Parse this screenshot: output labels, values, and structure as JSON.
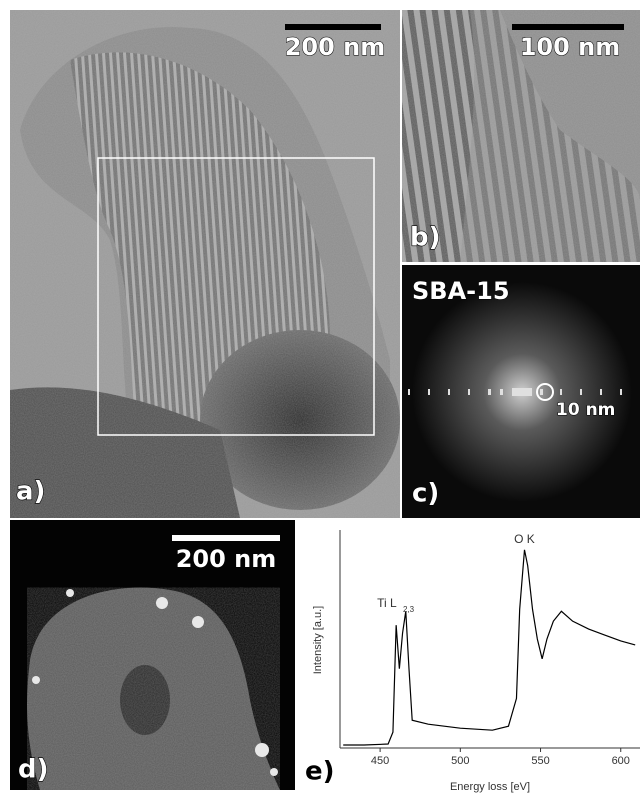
{
  "panels": {
    "a": {
      "label": "a)",
      "scale_bar": "200 nm"
    },
    "b": {
      "label": "b)",
      "scale_bar": "100 nm"
    },
    "c": {
      "label": "c)",
      "title": "SBA-15",
      "annotation": "10 nm"
    },
    "d": {
      "label": "d)",
      "scale_bar": "200 nm"
    },
    "e": {
      "label": "e)"
    }
  },
  "chart_data": {
    "type": "line",
    "xlabel": "Energy loss [eV]",
    "ylabel": "Intensity [a.u.]",
    "x": [
      427,
      440,
      455,
      458,
      460,
      462,
      464,
      466,
      468,
      470,
      480,
      500,
      520,
      530,
      535,
      537,
      540,
      542,
      545,
      548,
      551,
      554,
      558,
      563,
      570,
      580,
      590,
      600,
      609
    ],
    "series": [
      {
        "color": "#000000",
        "values": [
          1.5,
          1.5,
          2,
          8,
          62,
          40,
          58,
          69,
          40,
          14,
          12,
          10,
          9,
          11,
          25,
          70,
          100,
          92,
          70,
          55,
          45,
          55,
          64,
          69,
          64,
          60,
          57,
          54,
          52
        ]
      }
    ],
    "xlim": [
      425,
      612
    ],
    "ylim": [
      0,
      110
    ],
    "xticks": [
      450,
      500,
      550,
      600
    ],
    "annotations": [
      {
        "text": "O K",
        "x": 540
      },
      {
        "text": "Ti L",
        "sub": "2,3",
        "x": 458
      }
    ]
  }
}
